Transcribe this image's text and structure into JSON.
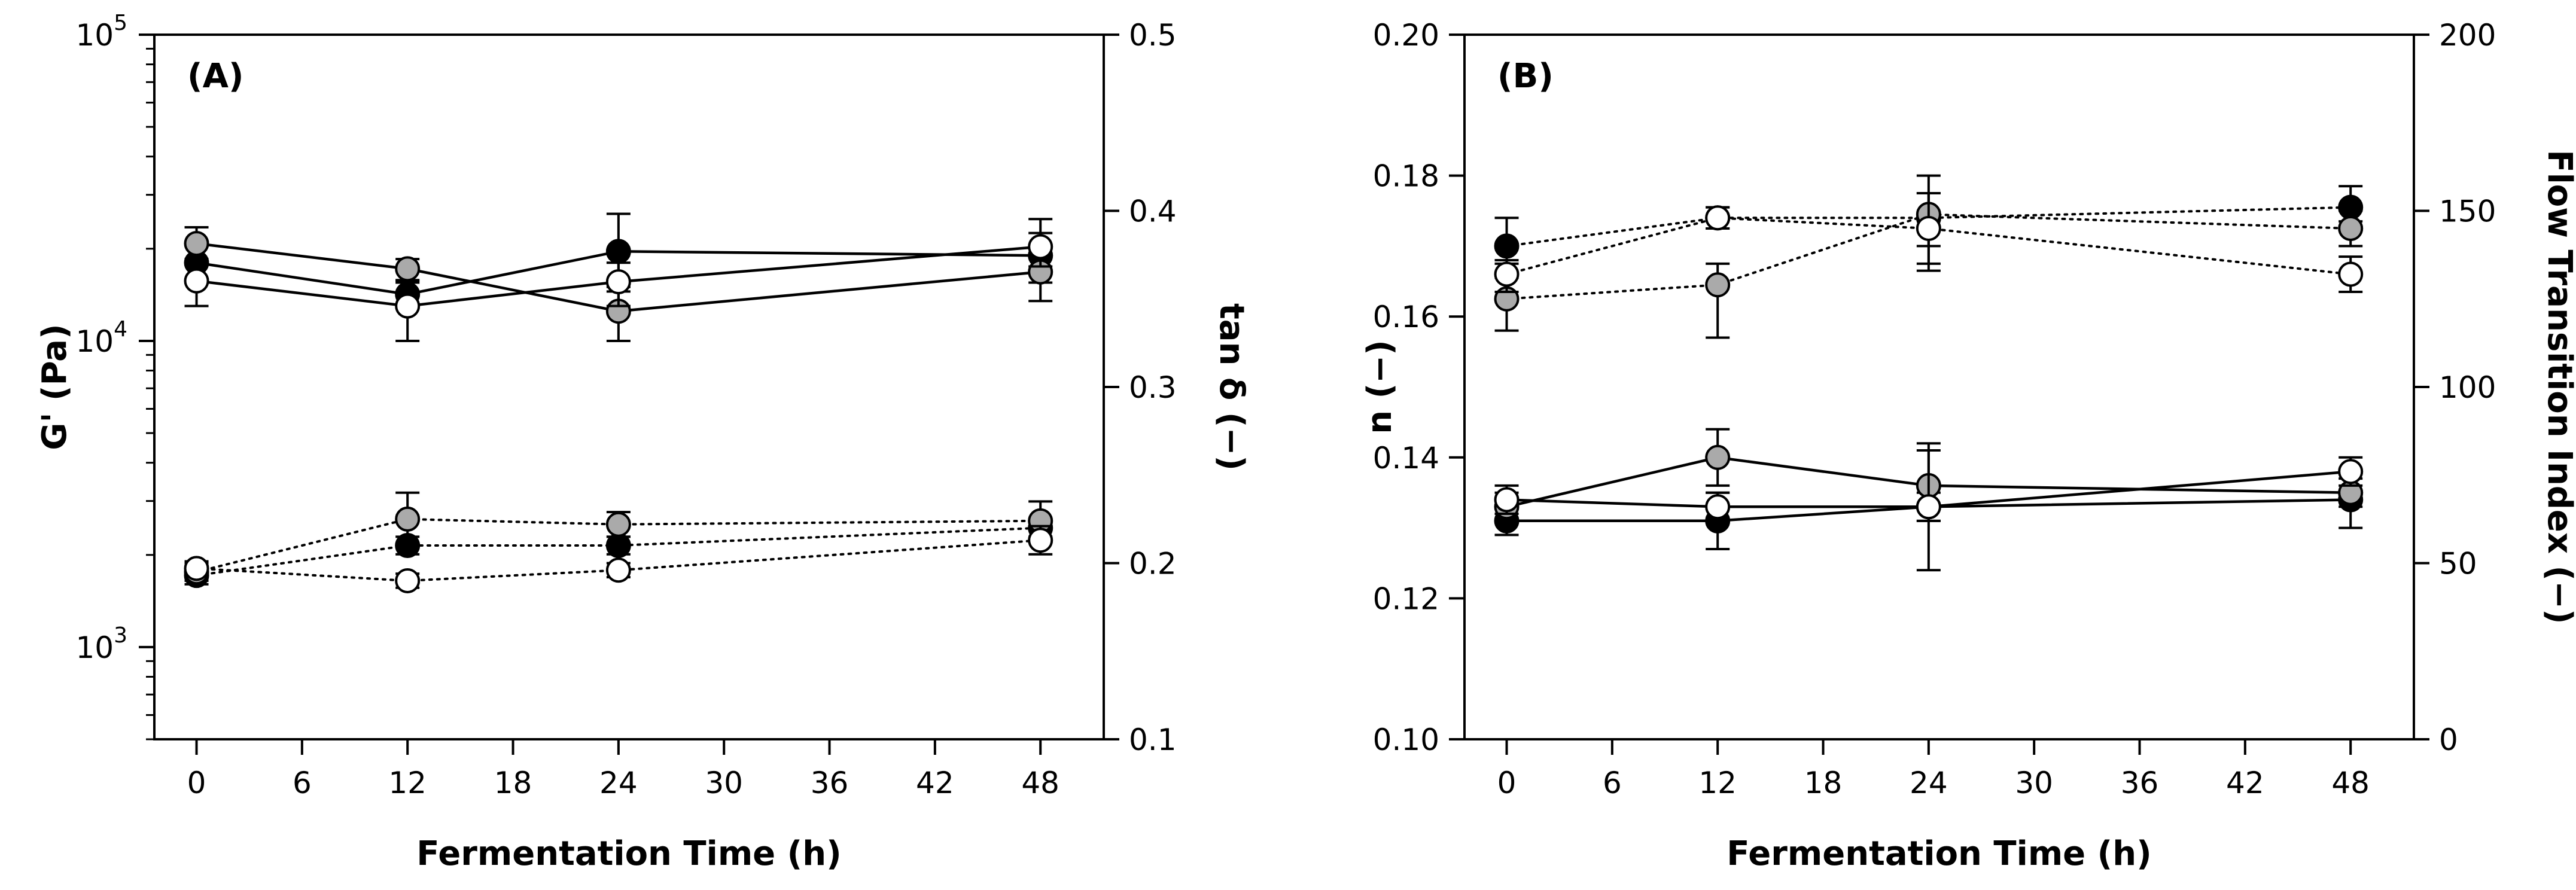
{
  "chart_data": [
    {
      "panel": "(A)",
      "type": "line",
      "xlabel": "Fermentation Time (h)",
      "ylabel_left": "G' (Pa)",
      "ylabel_right": "tan δ (−)",
      "xlim": [
        -2.4,
        51.6
      ],
      "xticks": [
        "0",
        "6",
        "12",
        "18",
        "24",
        "30",
        "36",
        "42",
        "48"
      ],
      "x_tick_values": [
        0,
        6,
        12,
        18,
        24,
        30,
        36,
        42,
        48
      ],
      "yscale_left": "log",
      "ylim_left": [
        500,
        100000
      ],
      "yticks_left": [
        {
          "value": 1000,
          "base": "10",
          "exp": "3"
        },
        {
          "value": 10000,
          "base": "10",
          "exp": "4"
        },
        {
          "value": 100000,
          "base": "10",
          "exp": "5"
        }
      ],
      "ylim_right": [
        0.1,
        0.5
      ],
      "yticks_right": [
        "0.1",
        "0.2",
        "0.3",
        "0.4",
        "0.5"
      ],
      "y_tick_values_right": [
        0.1,
        0.2,
        0.3,
        0.4,
        0.5
      ],
      "x": [
        0,
        12,
        24,
        48
      ],
      "series": [
        {
          "name": "G' black",
          "axis": "left",
          "style": "solid",
          "marker": "#000000",
          "values": [
            18000,
            14200,
            19600,
            19000
          ],
          "err": [
            [
              15500,
              20900
            ],
            [
              12800,
              15700
            ],
            [
              15000,
              26000
            ],
            [
              15500,
              22500
            ]
          ]
        },
        {
          "name": "G' gray",
          "axis": "left",
          "style": "solid",
          "marker": "#aaaaaa",
          "values": [
            20800,
            17200,
            12500,
            16800
          ],
          "err": [
            [
              18000,
              23500
            ],
            [
              15800,
              18500
            ],
            [
              10000,
              14500
            ],
            [
              13500,
              19000
            ]
          ]
        },
        {
          "name": "G' white",
          "axis": "left",
          "style": "solid",
          "marker": "#ffffff",
          "values": [
            15700,
            13000,
            15600,
            20300
          ],
          "err": [
            [
              13000,
              18500
            ],
            [
              10000,
              15500
            ],
            [
              13000,
              18000
            ],
            [
              17500,
              25000
            ]
          ]
        },
        {
          "name": "tan δ black",
          "axis": "right",
          "style": "dotted",
          "marker": "#000000",
          "values": [
            0.193,
            0.21,
            0.21,
            0.22
          ],
          "err": [
            [
              0.188,
              0.198
            ],
            [
              0.205,
              0.215
            ],
            [
              0.205,
              0.215
            ],
            [
              0.215,
              0.225
            ]
          ]
        },
        {
          "name": "tan δ gray",
          "axis": "right",
          "style": "dotted",
          "marker": "#aaaaaa",
          "values": [
            0.195,
            0.225,
            0.222,
            0.224
          ],
          "err": [
            [
              0.19,
              0.2
            ],
            [
              0.21,
              0.24
            ],
            [
              0.215,
              0.229
            ],
            [
              0.213,
              0.235
            ]
          ]
        },
        {
          "name": "tan δ white",
          "axis": "right",
          "style": "dotted",
          "marker": "#ffffff",
          "values": [
            0.197,
            0.19,
            0.196,
            0.213
          ],
          "err": [
            [
              0.193,
              0.201
            ],
            [
              0.186,
              0.194
            ],
            [
              0.192,
              0.2
            ],
            [
              0.205,
              0.221
            ]
          ]
        }
      ]
    },
    {
      "panel": "(B)",
      "type": "line",
      "xlabel": "Fermentation Time (h)",
      "ylabel_left": "n (−)",
      "ylabel_right": "Flow Transition Index (−)",
      "xlim": [
        -2.4,
        51.6
      ],
      "xticks": [
        "0",
        "6",
        "12",
        "18",
        "24",
        "30",
        "36",
        "42",
        "48"
      ],
      "x_tick_values": [
        0,
        6,
        12,
        18,
        24,
        30,
        36,
        42,
        48
      ],
      "ylim_left": [
        0.1,
        0.2
      ],
      "yticks_left": [
        "0.10",
        "0.12",
        "0.14",
        "0.16",
        "0.18",
        "0.20"
      ],
      "y_tick_values_left": [
        0.1,
        0.12,
        0.14,
        0.16,
        0.18,
        0.2
      ],
      "ylim_right": [
        0,
        200
      ],
      "yticks_right": [
        "0",
        "50",
        "100",
        "150",
        "200"
      ],
      "y_tick_values_right": [
        0,
        50,
        100,
        150,
        200
      ],
      "x": [
        0,
        12,
        24,
        48
      ],
      "series": [
        {
          "name": "n black",
          "axis": "left",
          "style": "solid",
          "marker": "#000000",
          "values": [
            0.131,
            0.131,
            0.133,
            0.134
          ],
          "err": [
            [
              0.129,
              0.133
            ],
            [
              0.127,
              0.135
            ],
            [
              0.131,
              0.135
            ],
            [
              0.13,
              0.138
            ]
          ]
        },
        {
          "name": "n gray",
          "axis": "left",
          "style": "solid",
          "marker": "#aaaaaa",
          "values": [
            0.133,
            0.14,
            0.136,
            0.135
          ],
          "err": [
            [
              0.131,
              0.135
            ],
            [
              0.136,
              0.144
            ],
            [
              0.131,
              0.141
            ],
            [
              0.133,
              0.137
            ]
          ]
        },
        {
          "name": "n white",
          "axis": "left",
          "style": "solid",
          "marker": "#ffffff",
          "values": [
            0.134,
            0.133,
            0.133,
            0.138
          ],
          "err": [
            [
              0.132,
              0.136
            ],
            [
              0.131,
              0.135
            ],
            [
              0.124,
              0.142
            ],
            [
              0.136,
              0.14
            ]
          ]
        },
        {
          "name": "FTI black",
          "axis": "right",
          "style": "dotted",
          "marker": "#000000",
          "values": [
            140,
            148,
            148,
            151
          ],
          "err": [
            [
              135,
              148
            ],
            [
              145,
              151
            ],
            [
              140,
              160
            ],
            [
              147,
              157
            ]
          ]
        },
        {
          "name": "FTI gray",
          "axis": "right",
          "style": "dotted",
          "marker": "#aaaaaa",
          "values": [
            125,
            129,
            149,
            145
          ],
          "err": [
            [
              116,
              131
            ],
            [
              114,
              135
            ],
            [
              135,
              155
            ],
            [
              140,
              150
            ]
          ]
        },
        {
          "name": "FTI white",
          "axis": "right",
          "style": "dotted",
          "marker": "#ffffff",
          "values": [
            132,
            148,
            145,
            132
          ],
          "err": [
            [
              127,
              136
            ],
            [
              145,
              151
            ],
            [
              133,
              155
            ],
            [
              127,
              137
            ]
          ]
        }
      ]
    }
  ]
}
